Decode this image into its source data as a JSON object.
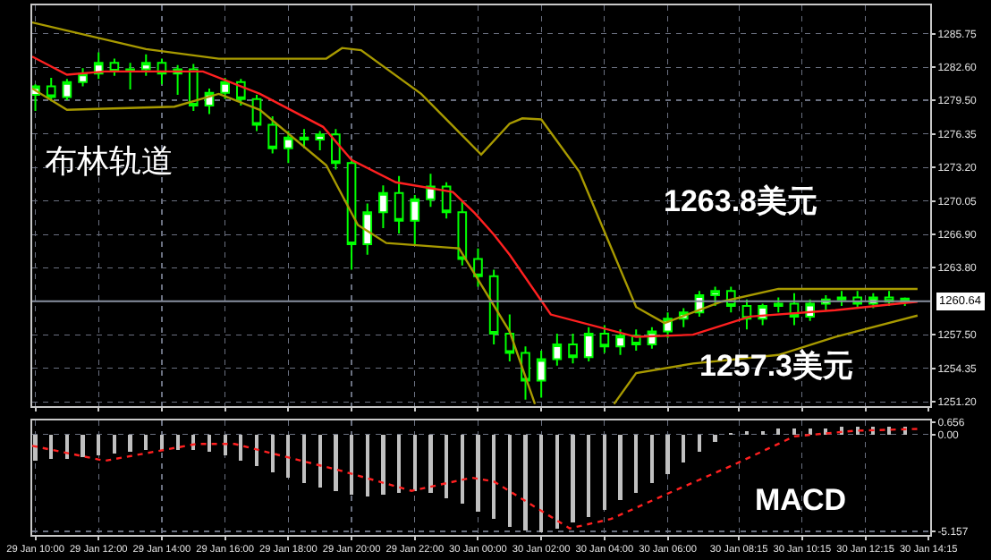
{
  "chart_data": [
    {
      "type": "candlestick",
      "color": "#00ff00",
      "grid": true,
      "tick_labels": "y",
      "annotations": [
        "布林轨道",
        "1263.8美元",
        "1257.3美元"
      ],
      "x": [
        "--01-29T10:00",
        "--01-29T10:30",
        "--01-29T11:00",
        "--01-29T11:30",
        "--01-29T12:00",
        "--01-29T12:30",
        "--01-29T13:00",
        "--01-29T13:30",
        "--01-29T14:00",
        "--01-29T14:30",
        "--01-29T15:00",
        "--01-29T15:30",
        "--01-29T16:00",
        "--01-29T16:30",
        "--01-29T17:00",
        "--01-29T17:30",
        "--01-29T18:00",
        "--01-29T18:30",
        "--01-29T19:00",
        "--01-29T19:30",
        "--01-29T20:00",
        "--01-29T20:30",
        "--01-29T21:00",
        "--01-29T21:30",
        "--01-29T22:00",
        "--01-29T22:30",
        "--01-29T23:00",
        "--01-29T23:30",
        "--01-30T00:00",
        "--01-30T00:30",
        "--01-30T01:00",
        "--01-30T01:30",
        "--01-30T02:00",
        "--01-30T02:30",
        "--01-30T03:00",
        "--01-30T03:30",
        "--01-30T04:00",
        "--01-30T04:30",
        "--01-30T05:00",
        "--01-30T05:30",
        "--01-30T06:00",
        "--01-30T06:30",
        "--01-30T07:00",
        "--01-30T07:30",
        "--01-30T08:00",
        "--01-30T08:30",
        "--01-30T09:00",
        "--01-30T09:30",
        "--01-30T10:00",
        "--01-30T10:30",
        "--01-30T11:00",
        "--01-30T11:30",
        "--01-30T12:00",
        "--01-30T12:30",
        "--01-30T13:00",
        "--01-30T13:30"
      ],
      "ohlc": [
        [
          1280.0,
          1281.0,
          1278.5,
          1280.8
        ],
        [
          1280.8,
          1281.6,
          1279.4,
          1279.8
        ],
        [
          1279.8,
          1281.5,
          1279.5,
          1281.2
        ],
        [
          1281.2,
          1282.5,
          1280.8,
          1282.0
        ],
        [
          1282.0,
          1284.0,
          1281.5,
          1283.0
        ],
        [
          1283.0,
          1283.4,
          1281.8,
          1282.2
        ],
        [
          1282.2,
          1283.0,
          1280.5,
          1282.4
        ],
        [
          1282.4,
          1283.8,
          1281.8,
          1283.0
        ],
        [
          1283.0,
          1283.4,
          1281.0,
          1282.0
        ],
        [
          1282.0,
          1282.8,
          1280.0,
          1282.4
        ],
        [
          1282.4,
          1282.9,
          1278.5,
          1279.0
        ],
        [
          1279.0,
          1280.6,
          1278.2,
          1280.2
        ],
        [
          1280.2,
          1281.6,
          1279.6,
          1281.2
        ],
        [
          1281.2,
          1281.5,
          1279.0,
          1279.6
        ],
        [
          1279.6,
          1280.0,
          1276.6,
          1277.2
        ],
        [
          1277.2,
          1278.0,
          1274.5,
          1275.0
        ],
        [
          1275.0,
          1276.6,
          1273.6,
          1276.0
        ],
        [
          1276.0,
          1276.8,
          1275.0,
          1275.8
        ],
        [
          1275.8,
          1276.6,
          1274.8,
          1276.3
        ],
        [
          1276.3,
          1276.8,
          1273.0,
          1273.6
        ],
        [
          1273.6,
          1274.0,
          1263.6,
          1266.0
        ],
        [
          1266.0,
          1269.8,
          1265.0,
          1269.0
        ],
        [
          1269.0,
          1271.5,
          1267.5,
          1270.8
        ],
        [
          1270.8,
          1272.4,
          1267.0,
          1268.2
        ],
        [
          1268.2,
          1270.6,
          1266.0,
          1270.2
        ],
        [
          1270.2,
          1272.6,
          1269.5,
          1271.4
        ],
        [
          1271.4,
          1271.8,
          1268.4,
          1269.0
        ],
        [
          1269.0,
          1270.0,
          1264.0,
          1264.6
        ],
        [
          1264.6,
          1265.6,
          1262.0,
          1263.0
        ],
        [
          1263.0,
          1263.6,
          1256.6,
          1257.6
        ],
        [
          1257.6,
          1259.4,
          1255.0,
          1255.8
        ],
        [
          1255.8,
          1256.4,
          1251.4,
          1253.2
        ],
        [
          1253.2,
          1256.0,
          1251.6,
          1255.2
        ],
        [
          1255.2,
          1257.6,
          1254.6,
          1256.6
        ],
        [
          1256.6,
          1257.6,
          1254.8,
          1255.4
        ],
        [
          1255.4,
          1258.2,
          1255.0,
          1257.6
        ],
        [
          1257.6,
          1258.4,
          1255.8,
          1256.4
        ],
        [
          1256.4,
          1258.0,
          1255.6,
          1257.4
        ],
        [
          1257.4,
          1258.0,
          1256.0,
          1256.6
        ],
        [
          1256.6,
          1258.2,
          1256.2,
          1257.8
        ],
        [
          1257.8,
          1259.6,
          1257.2,
          1259.0
        ],
        [
          1259.0,
          1260.0,
          1258.2,
          1259.6
        ],
        [
          1259.6,
          1261.6,
          1259.2,
          1261.2
        ],
        [
          1261.2,
          1262.0,
          1260.2,
          1261.6
        ],
        [
          1261.6,
          1262.0,
          1259.6,
          1260.2
        ],
        [
          1260.2,
          1260.8,
          1258.0,
          1259.0
        ],
        [
          1259.0,
          1260.4,
          1258.4,
          1260.2
        ],
        [
          1260.2,
          1261.0,
          1259.6,
          1260.4
        ],
        [
          1260.4,
          1261.4,
          1258.4,
          1259.2
        ],
        [
          1259.2,
          1260.8,
          1258.8,
          1260.4
        ],
        [
          1260.4,
          1261.2,
          1259.8,
          1260.8
        ],
        [
          1260.8,
          1261.6,
          1260.2,
          1261.0
        ],
        [
          1261.0,
          1261.6,
          1260.0,
          1260.4
        ],
        [
          1260.4,
          1261.4,
          1260.0,
          1261.0
        ],
        [
          1261.0,
          1261.6,
          1260.2,
          1260.6
        ],
        [
          1260.9,
          1261.0,
          1260.2,
          1260.6
        ]
      ],
      "series": [
        {
          "type": "line",
          "color": "#a89a00",
          "x": [
            "--01-29T09:54",
            "--01-29T13:30",
            "--01-29T15:48",
            "--01-29T19:12",
            "--01-29T19:42",
            "--01-29T20:18",
            "--01-29T22:12",
            "--01-30T00:06",
            "--01-30T01:00",
            "--01-30T01:24",
            "--01-30T02:00",
            "--01-30T03:12",
            "--01-30T05:00",
            "--01-30T05:54",
            "--01-30T07:42",
            "--01-30T09:30",
            "--01-30T13:54"
          ],
          "values": [
            1286.8,
            1284.3,
            1283.4,
            1283.4,
            1284.4,
            1284.2,
            1280.1,
            1274.4,
            1277.3,
            1277.8,
            1277.7,
            1272.8,
            1260.1,
            1258.6,
            1260.6,
            1261.8,
            1261.8
          ]
        },
        {
          "type": "line",
          "color": "#ff2020",
          "x": [
            "--01-29T09:54",
            "--01-29T11:00",
            "--01-29T12:12",
            "--01-29T15:18",
            "--01-29T17:06",
            "--01-29T19:06",
            "--01-29T20:00",
            "--01-29T21:24",
            "--01-29T23:12",
            "--01-29T23:54",
            "--01-30T00:30",
            "--01-30T01:00",
            "--01-30T02:18",
            "--01-30T05:00",
            "--01-30T06:48",
            "--01-30T08:36",
            "--01-30T11:18",
            "--01-30T13:54"
          ],
          "values": [
            1283.6,
            1281.9,
            1282.2,
            1282.2,
            1280.1,
            1277.0,
            1273.9,
            1271.8,
            1270.9,
            1268.9,
            1266.9,
            1265.0,
            1259.4,
            1257.3,
            1257.5,
            1259.2,
            1259.8,
            1260.6
          ]
        },
        {
          "type": "line",
          "color": "#a89a00",
          "x": [
            "--01-29T09:54",
            "--01-29T11:00",
            "--01-29T14:24",
            "--01-29T15:48",
            "--01-29T17:06",
            "--01-29T19:12",
            "--01-29T20:12",
            "--01-29T21:06",
            "--01-29T23:24",
            "--01-30T01:00",
            "--01-30T01:48",
            "--01-30T03:00",
            "--01-30T04:18",
            "--01-30T05:00",
            "--01-30T06:48",
            "--01-30T09:30",
            "--01-30T11:18",
            "--01-30T13:54"
          ],
          "values": [
            1280.6,
            1278.6,
            1278.9,
            1280.1,
            1278.6,
            1273.4,
            1267.8,
            1266.1,
            1265.6,
            1257.8,
            1251.0,
            null,
            1251.0,
            1253.9,
            1254.8,
            1255.6,
            1257.3,
            1259.3
          ]
        }
      ],
      "xlim": [
        "--01-29T09:54",
        "--01-30T14:18"
      ],
      "xticks": [
        {
          "value": "--01-29T10:00",
          "label": "29 Jan 10:00"
        },
        {
          "value": "--01-29T12:00",
          "label": "29 Jan 12:00"
        },
        {
          "value": "--01-29T14:00",
          "label": "29 Jan 14:00"
        },
        {
          "value": "--01-29T16:00",
          "label": "29 Jan 16:00"
        },
        {
          "value": "--01-29T18:00",
          "label": "29 Jan 18:00"
        },
        {
          "value": "--01-29T20:00",
          "label": "29 Jan 20:00"
        },
        {
          "value": "--01-29T22:00",
          "label": "29 Jan 22:00"
        },
        {
          "value": "--01-30T00:00",
          "label": "30 Jan 00:00"
        },
        {
          "value": "--01-30T02:00",
          "label": "30 Jan 02:00"
        },
        {
          "value": "--01-30T04:00",
          "label": "30 Jan 04:00"
        },
        {
          "value": "--01-30T06:00",
          "label": "30 Jan 06:00"
        },
        {
          "value": "--01-30T08:15",
          "label": "30 Jan 08:15"
        },
        {
          "value": "--01-30T10:15",
          "label": "30 Jan 10:15"
        },
        {
          "value": "--01-30T12:15",
          "label": "30 Jan 12:15"
        },
        {
          "value": "--01-30T14:15",
          "label": "30 Jan 14:15"
        }
      ],
      "ylim": [
        1250.8,
        1288.4
      ],
      "yticks": [
        {
          "value": 1285.75,
          "label": "1285.75"
        },
        {
          "value": 1282.6,
          "label": "1282.60"
        },
        {
          "value": 1279.5,
          "label": "1279.50"
        },
        {
          "value": 1276.35,
          "label": "1276.35"
        },
        {
          "value": 1273.2,
          "label": "1273.20"
        },
        {
          "value": 1270.05,
          "label": "1270.05"
        },
        {
          "value": 1266.9,
          "label": "1266.90"
        },
        {
          "value": 1263.8,
          "label": "1263.80"
        },
        {
          "value": 1257.5,
          "label": "1257.50"
        },
        {
          "value": 1254.35,
          "label": "1254.35"
        },
        {
          "value": 1251.2,
          "label": "1251.20"
        }
      ],
      "ref_lines": [
        {
          "axis": "y",
          "value": 1260.64,
          "label": "1260.64",
          "color": "#8890a0"
        }
      ]
    },
    {
      "type": "bar",
      "grid": true,
      "annotations": [
        "MACD"
      ],
      "x": [
        "--01-29T10:00",
        "--01-29T10:30",
        "--01-29T11:00",
        "--01-29T11:30",
        "--01-29T12:00",
        "--01-29T12:30",
        "--01-29T13:00",
        "--01-29T13:30",
        "--01-29T14:00",
        "--01-29T14:30",
        "--01-29T15:00",
        "--01-29T15:30",
        "--01-29T16:00",
        "--01-29T16:30",
        "--01-29T17:00",
        "--01-29T17:30",
        "--01-29T18:00",
        "--01-29T18:30",
        "--01-29T19:00",
        "--01-29T19:30",
        "--01-29T20:00",
        "--01-29T20:30",
        "--01-29T21:00",
        "--01-29T21:30",
        "--01-29T22:00",
        "--01-29T22:30",
        "--01-29T23:00",
        "--01-29T23:30",
        "--01-30T00:00",
        "--01-30T00:30",
        "--01-30T01:00",
        "--01-30T01:30",
        "--01-30T02:00",
        "--01-30T02:30",
        "--01-30T03:00",
        "--01-30T03:30",
        "--01-30T04:00",
        "--01-30T04:30",
        "--01-30T05:00",
        "--01-30T05:30",
        "--01-30T06:00",
        "--01-30T06:30",
        "--01-30T07:00",
        "--01-30T07:30",
        "--01-30T08:00",
        "--01-30T08:30",
        "--01-30T09:00",
        "--01-30T09:30",
        "--01-30T10:00",
        "--01-30T10:30",
        "--01-30T11:00",
        "--01-30T11:30",
        "--01-30T12:00",
        "--01-30T12:30",
        "--01-30T13:00",
        "--01-30T13:30"
      ],
      "series": [
        {
          "type": "bar",
          "color": "#c0c0c0",
          "values": [
            -1.4,
            -1.3,
            -1.3,
            -1.2,
            -1.1,
            -1.0,
            -0.9,
            -0.8,
            -0.8,
            -0.8,
            -0.8,
            -0.9,
            -1.1,
            -1.4,
            -1.7,
            -2.0,
            -2.3,
            -2.6,
            -2.8,
            -3.0,
            -3.2,
            -3.3,
            -3.2,
            -3.1,
            -3.0,
            -3.1,
            -3.4,
            -3.7,
            -4.1,
            -4.5,
            -4.9,
            -5.1,
            -5.2,
            -5.0,
            -4.7,
            -4.4,
            -4.0,
            -3.5,
            -3.1,
            -2.6,
            -2.1,
            -1.5,
            -0.9,
            -0.4,
            0.1,
            0.2,
            0.2,
            0.3,
            0.3,
            0.3,
            0.3,
            0.4,
            0.4,
            0.4,
            0.4,
            0.4
          ]
        },
        {
          "type": "line",
          "color": "#ff2020",
          "line_style": "dotted",
          "x": [
            "--01-29T09:54",
            "--01-29T12:12",
            "--01-29T15:06",
            "--01-29T16:18",
            "--01-29T19:36",
            "--01-29T21:54",
            "--01-29T23:48",
            "--01-30T00:30",
            "--01-30T02:54",
            "--01-30T04:12",
            "--01-30T06:12",
            "--01-30T08:06",
            "--01-30T10:00",
            "--01-30T11:54",
            "--01-30T13:54"
          ],
          "values": [
            -0.6,
            -1.4,
            -0.5,
            -0.5,
            -1.9,
            -3.0,
            -2.3,
            -2.5,
            -5.0,
            -4.5,
            -3.0,
            -1.6,
            -0.1,
            0.2,
            0.3
          ]
        }
      ],
      "xlim": [
        "--01-29T09:54",
        "--01-30T14:18"
      ],
      "xticks": [
        {
          "value": "--01-29T10:00",
          "label": "29 Jan 10:00"
        },
        {
          "value": "--01-29T12:00",
          "label": "29 Jan 12:00"
        },
        {
          "value": "--01-29T14:00",
          "label": "29 Jan 14:00"
        },
        {
          "value": "--01-29T16:00",
          "label": "29 Jan 16:00"
        },
        {
          "value": "--01-29T18:00",
          "label": "29 Jan 18:00"
        },
        {
          "value": "--01-29T20:00",
          "label": "29 Jan 20:00"
        },
        {
          "value": "--01-29T22:00",
          "label": "29 Jan 22:00"
        },
        {
          "value": "--01-30T00:00",
          "label": "30 Jan 00:00"
        },
        {
          "value": "--01-30T02:00",
          "label": "30 Jan 02:00"
        },
        {
          "value": "--01-30T04:00",
          "label": "30 Jan 04:00"
        },
        {
          "value": "--01-30T06:00",
          "label": "30 Jan 06:00"
        },
        {
          "value": "--01-30T08:15",
          "label": "30 Jan 08:15"
        },
        {
          "value": "--01-30T10:15",
          "label": "30 Jan 10:15"
        },
        {
          "value": "--01-30T12:15",
          "label": "30 Jan 12:15"
        },
        {
          "value": "--01-30T14:15",
          "label": "30 Jan 14:15"
        }
      ],
      "ylim": [
        -5.35,
        0.75
      ],
      "yticks": [
        0.656,
        {
          "value": 0,
          "label": "0.00"
        },
        -5.157
      ]
    }
  ]
}
